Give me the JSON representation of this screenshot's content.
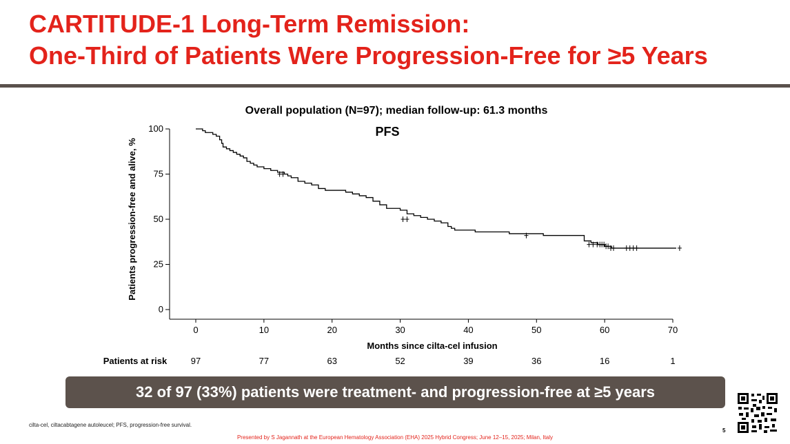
{
  "slide": {
    "title_line1": "CARTITUDE-1 Long-Term Remission:",
    "title_line2": "One-Third of Patients Were Progression-Free for ≥5 Years",
    "callout": "32 of 97 (33%) patients were treatment- and progression-free at ≥5 years",
    "footnote": "cilta-cel, ciltacabtagene autoleucel; PFS, progression-free survival.",
    "credit": "Presented by S Jagannath at the European Hematology Association (EHA) 2025 Hybrid Congress; June 12–15, 2025; Milan, Italy",
    "page_number": "5",
    "qr_icon": "qr-code-icon"
  },
  "colors": {
    "title": "#e3231b",
    "rule": "#5a514c",
    "banner": "#5c524c",
    "curve": "#000000"
  },
  "chart_data": {
    "type": "line",
    "subtitle": "Overall population (N=97); median follow-up: 61.3 months",
    "title": "PFS",
    "xlabel": "Months since cilta-cel infusion",
    "ylabel": "Patients progression-free and alive, %",
    "xlim": [
      0,
      70
    ],
    "ylim": [
      0,
      100
    ],
    "xticks": [
      0,
      10,
      20,
      30,
      40,
      50,
      60,
      70
    ],
    "yticks": [
      0,
      25,
      50,
      75,
      100
    ],
    "grid": false,
    "series": [
      {
        "step": true,
        "x": [
          0,
          1.0,
          1.4,
          2.5,
          3.0,
          3.5,
          3.8,
          4.0,
          4.5,
          5.0,
          5.5,
          6.0,
          6.5,
          7.0,
          7.5,
          8.0,
          8.5,
          9.0,
          9.5,
          10.0,
          11.0,
          12.0,
          13.0,
          13.5,
          14.0,
          15.0,
          16.0,
          17.0,
          18.0,
          19.0,
          20.0,
          21.0,
          22.0,
          23.0,
          24.0,
          25.0,
          26.0,
          27.0,
          28.0,
          29.0,
          30.0,
          31.0,
          32.0,
          33.0,
          34.0,
          35.0,
          36.0,
          37.0,
          37.5,
          38.0,
          41.0,
          46.0,
          51.0,
          57.0,
          58.0,
          59.0,
          59.3,
          60.0,
          61.0,
          62.0,
          63.0,
          64.0,
          65.0,
          70.5
        ],
        "y": [
          100,
          99,
          98,
          97,
          96,
          94,
          92,
          90,
          89,
          88,
          87,
          86,
          85,
          84,
          82,
          81,
          80,
          79,
          79,
          78,
          77,
          76,
          75,
          74,
          73,
          71,
          70,
          69,
          67,
          66,
          66,
          66,
          65,
          64,
          63,
          62,
          60,
          58,
          56,
          56,
          55,
          53,
          52,
          51,
          50,
          49,
          48,
          46,
          45,
          44,
          43,
          42,
          41,
          38,
          37,
          36,
          36,
          35,
          34,
          34,
          34,
          34,
          34,
          34
        ]
      }
    ],
    "censor_marks": {
      "x": [
        12.3,
        12.8,
        30.4,
        31.0,
        48.5,
        57.7,
        58.3,
        58.9,
        59.3,
        59.6,
        59.9,
        60.2,
        60.5,
        60.9,
        61.3,
        63.2,
        63.7,
        64.2,
        64.7,
        71.0
      ],
      "y": [
        75,
        75,
        50,
        50,
        41,
        36,
        36,
        36,
        36,
        36,
        36,
        35,
        35,
        34,
        34,
        34,
        34,
        34,
        34,
        34
      ]
    },
    "at_risk": {
      "label": "Patients at risk",
      "times": [
        0,
        10,
        20,
        30,
        40,
        50,
        60,
        70
      ],
      "values": [
        97,
        77,
        63,
        52,
        39,
        36,
        16,
        1
      ]
    }
  }
}
